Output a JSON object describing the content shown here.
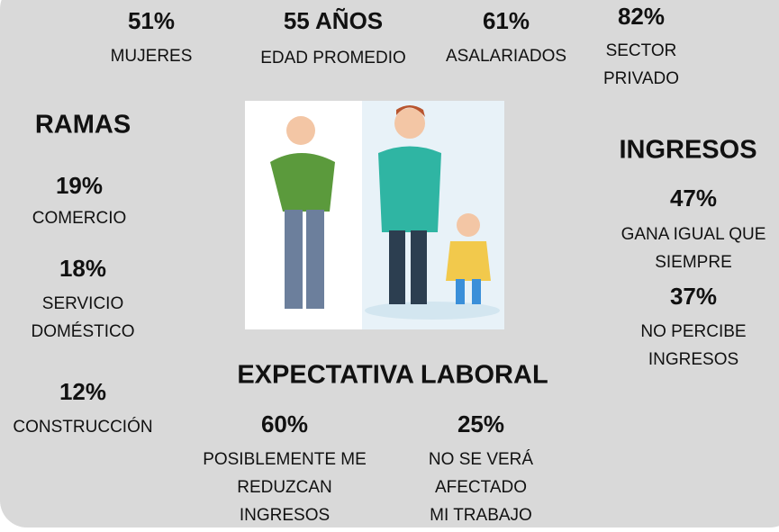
{
  "header": [
    {
      "value": "51%",
      "label": [
        "MUJERES"
      ]
    },
    {
      "value": "55 AÑOS",
      "label": [
        "EDAD PROMEDIO"
      ]
    },
    {
      "value": "61%",
      "label": [
        "ASALARIADOS"
      ]
    },
    {
      "value": "82%",
      "label": [
        "SECTOR",
        "PRIVADO"
      ]
    }
  ],
  "ramas": {
    "title": "RAMAS",
    "items": [
      {
        "value": "19%",
        "label": [
          "COMERCIO"
        ]
      },
      {
        "value": "18%",
        "label": [
          "SERVICIO",
          "DOMÉSTICO"
        ]
      },
      {
        "value": "12%",
        "label": [
          "CONSTRUCCIÓN"
        ]
      }
    ]
  },
  "ingresos": {
    "title": "INGRESOS",
    "items": [
      {
        "value": "47%",
        "label": [
          "GANA IGUAL QUE",
          "SIEMPRE"
        ]
      },
      {
        "value": "37%",
        "label": [
          "NO PERCIBE",
          "INGRESOS"
        ]
      }
    ]
  },
  "expectativa": {
    "title": "EXPECTATIVA LABORAL",
    "items": [
      {
        "value": "60%",
        "label": [
          "POSIBLEMENTE ME",
          "REDUZCAN",
          "INGRESOS"
        ]
      },
      {
        "value": "25%",
        "label": [
          "NO SE VERÁ",
          "AFECTADO",
          "MI TRABAJO"
        ]
      }
    ]
  }
}
